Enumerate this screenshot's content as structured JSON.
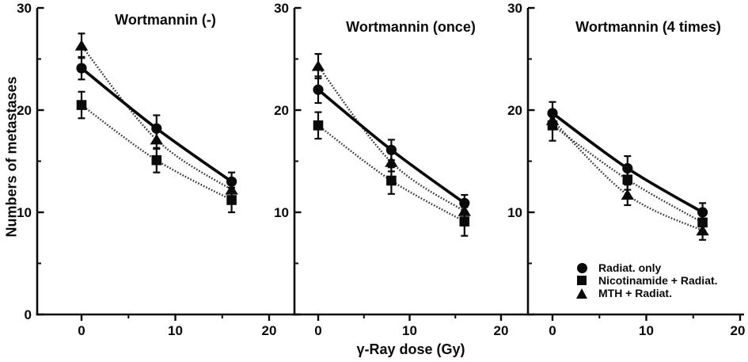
{
  "figure": {
    "ylabel": "Numbers of metastases",
    "xlabel": "γ-Ray dose (Gy)",
    "colors": {
      "ink": "#0a0a0a",
      "background": "#ffffff"
    },
    "legend": {
      "position": "inside lower area of right panel",
      "items": [
        {
          "marker": "circle-icon",
          "label": "Radiat. only"
        },
        {
          "marker": "square-icon",
          "label": "Nicotinamide + Radiat."
        },
        {
          "marker": "triangle-icon",
          "label": "MTH + Radiat."
        }
      ]
    }
  },
  "chart_data": [
    {
      "type": "line",
      "title": "Wortmannin (-)",
      "x": [
        0,
        8,
        16
      ],
      "xlabel": "γ-Ray dose (Gy)",
      "ylabel": "Numbers of metastases",
      "xlim": [
        -4.7,
        22.6
      ],
      "ylim": [
        0,
        30
      ],
      "xticks": [
        0,
        10,
        20
      ],
      "xticks_minor": [
        5,
        15
      ],
      "yticks": [
        0,
        10,
        20,
        30
      ],
      "yticks_minor": [
        5,
        15,
        25
      ],
      "grid": false,
      "series": [
        {
          "name": "Radiat. only",
          "marker": "circle",
          "line_style": "solid",
          "values": [
            24.1,
            18.2,
            13.0
          ],
          "errors": [
            1.1,
            1.3,
            0.9
          ]
        },
        {
          "name": "Nicotinamide + Radiat.",
          "marker": "square",
          "line_style": "dotted",
          "values": [
            20.5,
            15.1,
            11.2
          ],
          "errors": [
            1.3,
            1.2,
            1.2
          ]
        },
        {
          "name": "MTH + Radiat.",
          "marker": "triangle",
          "line_style": "dotted",
          "values": [
            26.3,
            17.1,
            12.2
          ],
          "errors": [
            1.2,
            0.9,
            0.7
          ]
        }
      ]
    },
    {
      "type": "line",
      "title": "Wortmannin (once)",
      "x": [
        0,
        8,
        16
      ],
      "xlabel": "γ-Ray dose (Gy)",
      "ylabel": "Numbers of metastases",
      "xlim": [
        -2.6,
        25.5
      ],
      "ylim": [
        0,
        30
      ],
      "xticks": [
        0,
        10,
        20
      ],
      "xticks_minor": [
        5,
        15
      ],
      "yticks": [
        0,
        10,
        20,
        30
      ],
      "yticks_minor": [
        5,
        15,
        25
      ],
      "grid": false,
      "series": [
        {
          "name": "Radiat. only",
          "marker": "circle",
          "line_style": "solid",
          "values": [
            22.0,
            16.1,
            10.9
          ],
          "errors": [
            1.3,
            1.0,
            0.8
          ]
        },
        {
          "name": "Nicotinamide + Radiat.",
          "marker": "square",
          "line_style": "dotted",
          "values": [
            18.5,
            13.1,
            9.1
          ],
          "errors": [
            1.3,
            1.3,
            1.4
          ]
        },
        {
          "name": "MTH + Radiat.",
          "marker": "triangle",
          "line_style": "dotted",
          "values": [
            24.3,
            14.9,
            10.1
          ],
          "errors": [
            1.2,
            0.9,
            0.6
          ]
        }
      ]
    },
    {
      "type": "line",
      "title": "Wortmannin (4 times)",
      "x": [
        0,
        8,
        16
      ],
      "xlabel": "γ-Ray dose (Gy)",
      "ylabel": "Numbers of metastases",
      "xlim": [
        -2.6,
        23.1
      ],
      "ylim": [
        0,
        30
      ],
      "xticks": [
        0,
        10,
        20
      ],
      "xticks_minor": [
        5,
        15
      ],
      "yticks": [
        0,
        10,
        20,
        30
      ],
      "yticks_minor": [
        5,
        15,
        25
      ],
      "grid": false,
      "series": [
        {
          "name": "Radiat. only",
          "marker": "circle",
          "line_style": "solid",
          "values": [
            19.7,
            14.3,
            10.0
          ],
          "errors": [
            1.1,
            1.2,
            0.9
          ]
        },
        {
          "name": "Nicotinamide + Radiat.",
          "marker": "square",
          "line_style": "dotted",
          "values": [
            18.5,
            13.2,
            9.0
          ],
          "errors": [
            1.5,
            1.0,
            0.8
          ]
        },
        {
          "name": "MTH + Radiat.",
          "marker": "triangle",
          "line_style": "dotted",
          "values": [
            19.0,
            11.7,
            8.2
          ],
          "errors": [
            0.8,
            1.0,
            0.9
          ]
        }
      ]
    }
  ]
}
